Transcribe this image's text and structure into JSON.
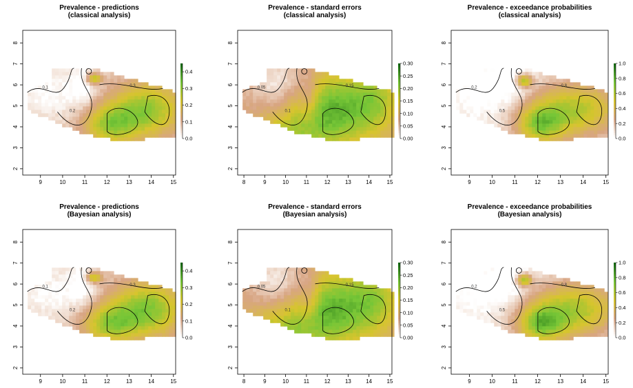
{
  "colors": {
    "low": "#ffffff",
    "mid_low": "#d8a583",
    "mid": "#d7c52d",
    "mid_high": "#76c637",
    "high": "#146b12",
    "contour": "#000000",
    "axis": "#000000"
  },
  "chart_data": [
    {
      "type": "heatmap",
      "title": "Prevalence - predictions",
      "subtitle": "(classical analysis)",
      "x_ticks": [
        "9",
        "10",
        "11",
        "12",
        "13",
        "14",
        "15"
      ],
      "y_ticks": [
        "2",
        "3",
        "4",
        "5",
        "6",
        "7",
        "8"
      ],
      "xlim": [
        8.2,
        15.1
      ],
      "ylim": [
        1.7,
        8.6
      ],
      "legend": {
        "ticks": [
          "0.0",
          "0.1",
          "0.2",
          "0.3",
          "0.4"
        ],
        "range": [
          0,
          0.45
        ],
        "placement": "right"
      },
      "contour_labels": [
        "0.1",
        "0.2",
        "0.3"
      ]
    },
    {
      "type": "heatmap",
      "title": "Prevalence - standard errors",
      "subtitle": "(classical analysis)",
      "x_ticks": [
        "8",
        "9",
        "10",
        "11",
        "12",
        "13",
        "14",
        "15"
      ],
      "y_ticks": [
        "2",
        "3",
        "4",
        "5",
        "6",
        "7",
        "8"
      ],
      "xlim": [
        7.7,
        15.1
      ],
      "ylim": [
        1.7,
        8.6
      ],
      "legend": {
        "ticks": [
          "0.00",
          "0.05",
          "0.10",
          "0.15",
          "0.20",
          "0.25",
          "0.30"
        ],
        "range": [
          0,
          0.3
        ],
        "placement": "right"
      },
      "contour_labels": [
        "0.05",
        "0.1",
        "0.15"
      ]
    },
    {
      "type": "heatmap",
      "title": "Prevalence - exceedance probabilities",
      "subtitle": "(classical analysis)",
      "x_ticks": [
        "9",
        "10",
        "11",
        "12",
        "13",
        "14",
        "15"
      ],
      "y_ticks": [
        "2",
        "3",
        "4",
        "5",
        "6",
        "7",
        "8"
      ],
      "xlim": [
        8.2,
        15.1
      ],
      "ylim": [
        1.7,
        8.6
      ],
      "legend": {
        "ticks": [
          "0.0",
          "0.2",
          "0.4",
          "0.6",
          "0.8",
          "1.0"
        ],
        "range": [
          0,
          1
        ],
        "placement": "right"
      },
      "contour_labels": [
        "0.2",
        "0.5",
        "0.8"
      ]
    },
    {
      "type": "heatmap",
      "title": "Prevalence - predictions",
      "subtitle": "(Bayesian analysis)",
      "x_ticks": [
        "9",
        "10",
        "11",
        "12",
        "13",
        "14",
        "15"
      ],
      "y_ticks": [
        "2",
        "3",
        "4",
        "5",
        "6",
        "7",
        "8"
      ],
      "xlim": [
        8.2,
        15.1
      ],
      "ylim": [
        1.7,
        8.6
      ],
      "legend": {
        "ticks": [
          "0.0",
          "0.1",
          "0.2",
          "0.3",
          "0.4"
        ],
        "range": [
          0,
          0.45
        ],
        "placement": "right"
      },
      "contour_labels": [
        "0.1",
        "0.2",
        "0.3"
      ]
    },
    {
      "type": "heatmap",
      "title": "Prevalence - standard errors",
      "subtitle": "(Bayesian analysis)",
      "x_ticks": [
        "8",
        "9",
        "10",
        "11",
        "12",
        "13",
        "14",
        "15"
      ],
      "y_ticks": [
        "2",
        "3",
        "4",
        "5",
        "6",
        "7",
        "8"
      ],
      "xlim": [
        7.7,
        15.1
      ],
      "ylim": [
        1.7,
        8.6
      ],
      "legend": {
        "ticks": [
          "0.00",
          "0.05",
          "0.10",
          "0.15",
          "0.20",
          "0.25",
          "0.30"
        ],
        "range": [
          0,
          0.3
        ],
        "placement": "right"
      },
      "contour_labels": [
        "0.05",
        "0.1",
        "0.15"
      ]
    },
    {
      "type": "heatmap",
      "title": "Prevalence - exceedance probabilities",
      "subtitle": "(Bayesian analysis)",
      "x_ticks": [
        "9",
        "10",
        "11",
        "12",
        "13",
        "14",
        "15"
      ],
      "y_ticks": [
        "2",
        "3",
        "4",
        "5",
        "6",
        "7",
        "8"
      ],
      "xlim": [
        8.2,
        15.1
      ],
      "ylim": [
        1.7,
        8.6
      ],
      "legend": {
        "ticks": [
          "0.0",
          "0.2",
          "0.4",
          "0.6",
          "0.8",
          "1.0"
        ],
        "range": [
          0,
          1
        ],
        "placement": "right"
      },
      "contour_labels": [
        "0.2",
        "0.5",
        "0.8"
      ]
    }
  ]
}
